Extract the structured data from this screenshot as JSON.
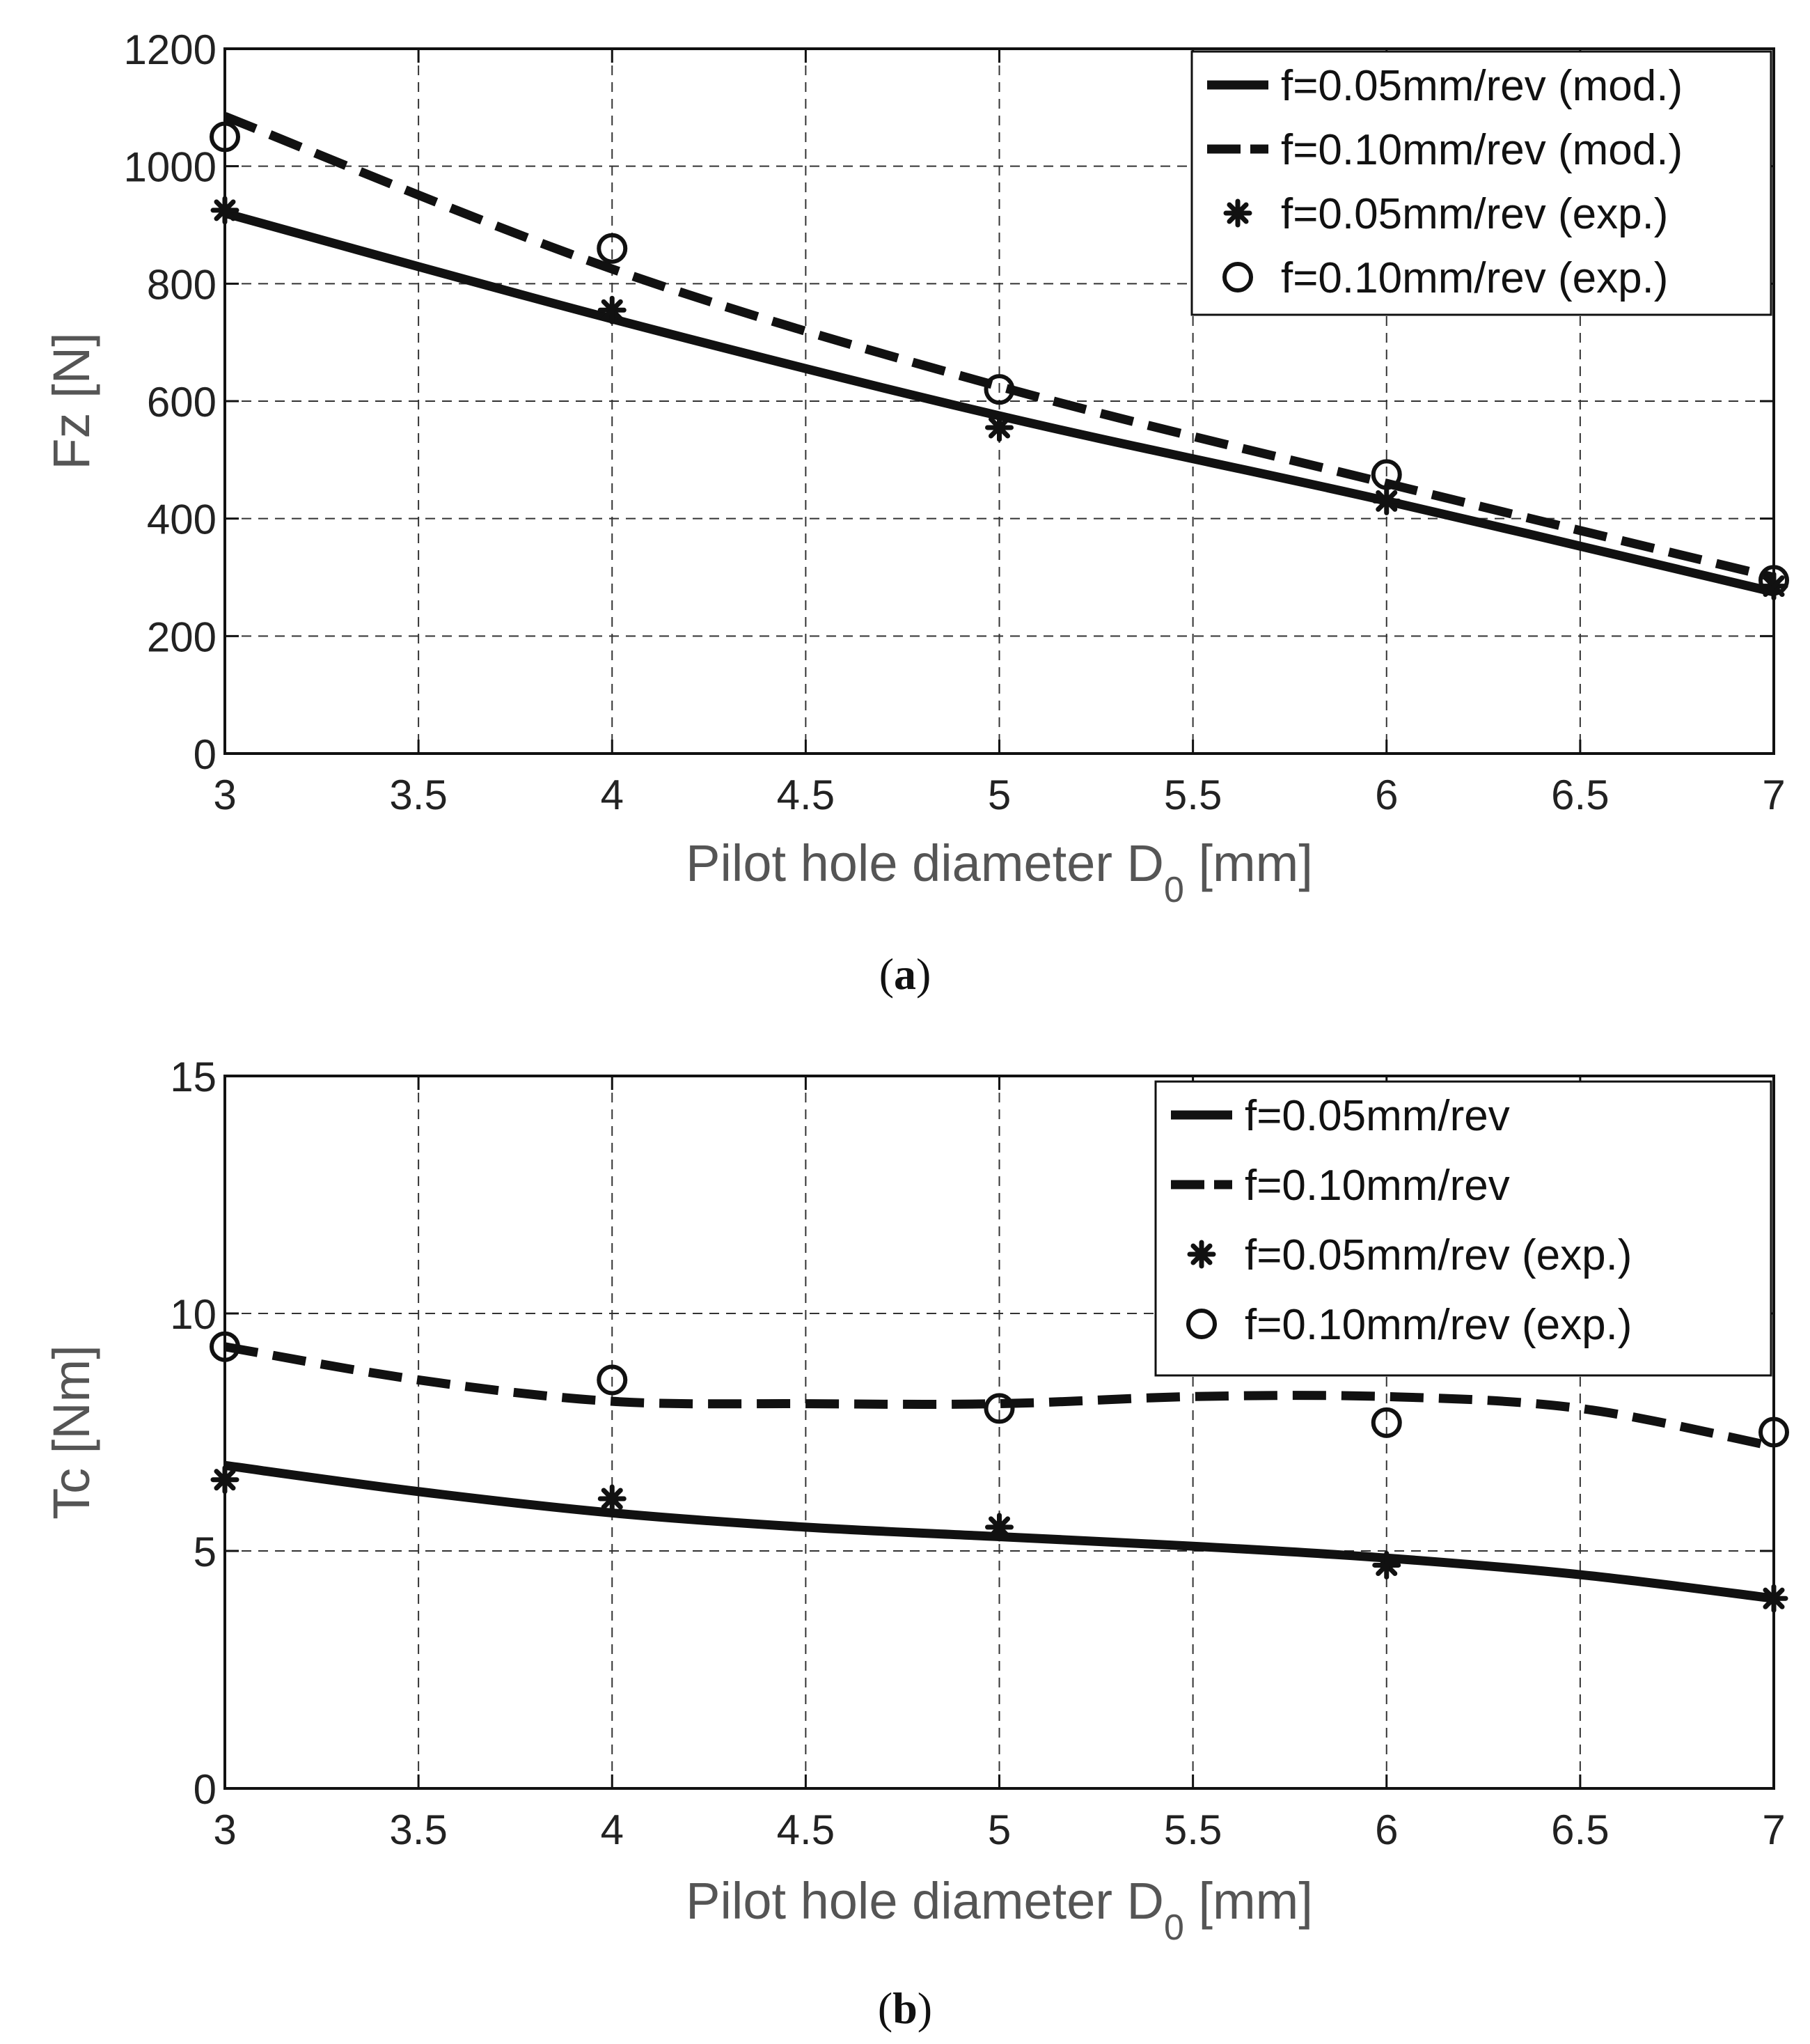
{
  "chart_data": [
    {
      "type": "line",
      "caption": {
        "open": "(",
        "letter": "a",
        "close": ")"
      },
      "xlabel": {
        "main": "Pilot hole diameter D",
        "sub": "0",
        "unit": " [mm]"
      },
      "ylabel": "Fz [N]",
      "xlim": [
        3,
        7
      ],
      "ylim": [
        0,
        1200
      ],
      "xticks": [
        3,
        3.5,
        4,
        4.5,
        5,
        5.5,
        6,
        6.5,
        7
      ],
      "yticks": [
        0,
        200,
        400,
        600,
        800,
        1000,
        1200
      ],
      "grid": true,
      "legend_position": "top-right",
      "series": [
        {
          "name": "f=0.05mm/rev (mod.)",
          "style": "solid",
          "x": [
            3,
            4,
            5,
            6,
            7
          ],
          "y": [
            920,
            740,
            575,
            430,
            275
          ]
        },
        {
          "name": "f=0.10mm/rev (mod.)",
          "style": "dashed",
          "x": [
            3,
            4,
            5,
            6,
            7
          ],
          "y": [
            1085,
            825,
            625,
            460,
            300
          ]
        },
        {
          "name": "f=0.05mm/rev (exp.)",
          "style": "star",
          "x": [
            3,
            4,
            5,
            6,
            7
          ],
          "y": [
            925,
            755,
            555,
            430,
            285
          ]
        },
        {
          "name": "f=0.10mm/rev (exp.)",
          "style": "circle",
          "x": [
            3,
            4,
            5,
            6,
            7
          ],
          "y": [
            1050,
            860,
            620,
            475,
            295
          ]
        }
      ]
    },
    {
      "type": "line",
      "caption": {
        "open": "(",
        "letter": "b",
        "close": ")"
      },
      "xlabel": {
        "main": "Pilot hole diameter D",
        "sub": "0",
        "unit": " [mm]"
      },
      "ylabel": "Tc [Nm]",
      "xlim": [
        3,
        7
      ],
      "ylim": [
        0,
        15
      ],
      "xticks": [
        3,
        3.5,
        4,
        4.5,
        5,
        5.5,
        6,
        6.5,
        7
      ],
      "yticks": [
        0,
        5,
        10,
        15
      ],
      "grid": true,
      "legend_position": "top-right",
      "series": [
        {
          "name": "f=0.05mm/rev",
          "style": "solid",
          "x": [
            3,
            3.5,
            4,
            4.5,
            5,
            5.5,
            6,
            6.5,
            7
          ],
          "y": [
            6.8,
            6.25,
            5.8,
            5.5,
            5.3,
            5.1,
            4.85,
            4.5,
            4.0
          ]
        },
        {
          "name": "f=0.10mm/rev",
          "style": "dashed",
          "x": [
            3,
            3.5,
            4,
            4.5,
            5,
            5.5,
            6,
            6.5,
            7
          ],
          "y": [
            9.3,
            8.6,
            8.15,
            8.1,
            8.1,
            8.25,
            8.25,
            8.0,
            7.2
          ]
        },
        {
          "name": "f=0.05mm/rev (exp.)",
          "style": "star",
          "x": [
            3,
            4,
            5,
            6,
            7
          ],
          "y": [
            6.5,
            6.1,
            5.5,
            4.7,
            4.0
          ]
        },
        {
          "name": "f=0.10mm/rev (exp.)",
          "style": "circle",
          "x": [
            3,
            4,
            5,
            6,
            7
          ],
          "y": [
            9.3,
            8.6,
            8.0,
            7.7,
            7.5
          ]
        }
      ]
    }
  ]
}
